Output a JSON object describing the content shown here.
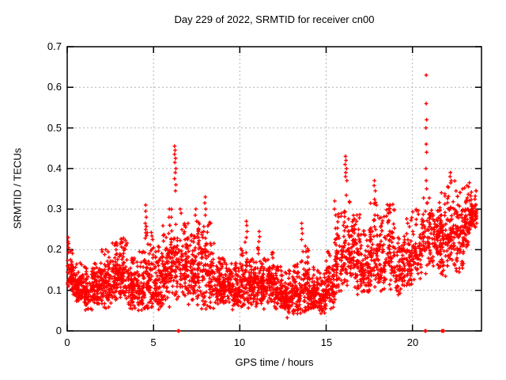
{
  "chart_data": {
    "type": "scatter",
    "title": "Day 229 of 2022, SRMTID for receiver cn00",
    "xlabel": "GPS time / hours",
    "ylabel": "SRMTID / TECUs",
    "xlim": [
      0,
      24
    ],
    "ylim": [
      0,
      0.7
    ],
    "xticks": [
      0,
      5,
      10,
      15,
      20
    ],
    "yticks": [
      0,
      0.1,
      0.2,
      0.3,
      0.4,
      0.5,
      0.6,
      0.7
    ],
    "xtick_labels": [
      "0",
      "5",
      "10",
      "15",
      "20"
    ],
    "ytick_labels": [
      "0",
      "0.1",
      "0.2",
      "0.3",
      "0.4",
      "0.5",
      "0.6",
      "0.7"
    ],
    "grid": true,
    "legend": null,
    "marker": "plus",
    "marker_color": "#ff0000",
    "grid_color": "#b4b4b4",
    "axis_color": "#000000",
    "seed": 229,
    "band_bins_format": [
      "t_start_hours",
      "t_end_hours",
      "point_count",
      "y_min_TECU",
      "y_max_TECU"
    ],
    "band_bins": [
      [
        0.0,
        0.5,
        80,
        0.08,
        0.2
      ],
      [
        0.5,
        1.0,
        80,
        0.06,
        0.17
      ],
      [
        1.0,
        1.5,
        80,
        0.05,
        0.16
      ],
      [
        1.5,
        2.0,
        80,
        0.06,
        0.17
      ],
      [
        2.0,
        2.5,
        80,
        0.05,
        0.21
      ],
      [
        2.5,
        3.0,
        80,
        0.06,
        0.22
      ],
      [
        3.0,
        3.5,
        80,
        0.07,
        0.23
      ],
      [
        3.5,
        4.0,
        80,
        0.05,
        0.18
      ],
      [
        4.0,
        4.5,
        75,
        0.04,
        0.2
      ],
      [
        4.5,
        5.0,
        75,
        0.05,
        0.26
      ],
      [
        5.0,
        5.5,
        75,
        0.04,
        0.22
      ],
      [
        5.5,
        6.0,
        75,
        0.05,
        0.27
      ],
      [
        6.0,
        6.5,
        75,
        0.07,
        0.3
      ],
      [
        6.5,
        7.0,
        75,
        0.08,
        0.27
      ],
      [
        7.0,
        7.5,
        75,
        0.06,
        0.24
      ],
      [
        7.5,
        8.0,
        75,
        0.05,
        0.27
      ],
      [
        8.0,
        8.5,
        75,
        0.04,
        0.27
      ],
      [
        8.5,
        9.0,
        75,
        0.05,
        0.18
      ],
      [
        9.0,
        9.5,
        75,
        0.06,
        0.18
      ],
      [
        9.5,
        10.0,
        75,
        0.05,
        0.17
      ],
      [
        10.0,
        10.5,
        75,
        0.05,
        0.22
      ],
      [
        10.5,
        11.0,
        75,
        0.06,
        0.18
      ],
      [
        11.0,
        11.5,
        75,
        0.05,
        0.21
      ],
      [
        11.5,
        12.0,
        75,
        0.06,
        0.2
      ],
      [
        12.0,
        12.5,
        75,
        0.05,
        0.16
      ],
      [
        12.5,
        13.0,
        75,
        0.03,
        0.15
      ],
      [
        13.0,
        13.5,
        75,
        0.03,
        0.17
      ],
      [
        13.5,
        14.0,
        75,
        0.04,
        0.21
      ],
      [
        14.0,
        14.5,
        75,
        0.05,
        0.16
      ],
      [
        14.5,
        15.0,
        75,
        0.04,
        0.15
      ],
      [
        15.0,
        15.5,
        70,
        0.05,
        0.2
      ],
      [
        15.5,
        16.0,
        70,
        0.07,
        0.29
      ],
      [
        16.0,
        16.5,
        70,
        0.1,
        0.34
      ],
      [
        16.5,
        17.0,
        70,
        0.08,
        0.29
      ],
      [
        17.0,
        17.5,
        70,
        0.08,
        0.25
      ],
      [
        17.5,
        18.0,
        70,
        0.1,
        0.33
      ],
      [
        18.0,
        18.5,
        70,
        0.08,
        0.29
      ],
      [
        18.5,
        19.0,
        70,
        0.1,
        0.32
      ],
      [
        19.0,
        19.5,
        65,
        0.08,
        0.24
      ],
      [
        19.5,
        20.0,
        65,
        0.1,
        0.28
      ],
      [
        20.0,
        20.5,
        60,
        0.12,
        0.3
      ],
      [
        20.5,
        21.0,
        55,
        0.14,
        0.33
      ],
      [
        21.0,
        21.5,
        65,
        0.15,
        0.33
      ],
      [
        21.5,
        22.0,
        75,
        0.13,
        0.35
      ],
      [
        22.0,
        22.5,
        75,
        0.15,
        0.37
      ],
      [
        22.5,
        23.0,
        75,
        0.14,
        0.35
      ],
      [
        23.0,
        23.4,
        60,
        0.2,
        0.36
      ],
      [
        23.4,
        23.75,
        45,
        0.24,
        0.35
      ]
    ],
    "spike_points": [
      [
        0.05,
        0.23
      ],
      [
        0.05,
        0.22
      ],
      [
        0.08,
        0.215
      ],
      [
        0.08,
        0.205
      ],
      [
        4.55,
        0.31
      ],
      [
        4.55,
        0.295
      ],
      [
        4.58,
        0.28
      ],
      [
        4.52,
        0.265
      ],
      [
        4.55,
        0.25
      ],
      [
        4.6,
        0.235
      ],
      [
        5.92,
        0.3
      ],
      [
        5.9,
        0.28
      ],
      [
        5.95,
        0.26
      ],
      [
        5.88,
        0.24
      ],
      [
        6.22,
        0.455
      ],
      [
        6.25,
        0.445
      ],
      [
        6.22,
        0.435
      ],
      [
        6.28,
        0.425
      ],
      [
        6.24,
        0.415
      ],
      [
        6.3,
        0.4
      ],
      [
        6.26,
        0.39
      ],
      [
        6.22,
        0.375
      ],
      [
        6.3,
        0.36
      ],
      [
        6.27,
        0.345
      ],
      [
        6.55,
        0.3
      ],
      [
        6.6,
        0.29
      ],
      [
        7.45,
        0.3
      ],
      [
        7.42,
        0.285
      ],
      [
        7.5,
        0.27
      ],
      [
        8.0,
        0.33
      ],
      [
        7.97,
        0.315
      ],
      [
        8.03,
        0.3
      ],
      [
        8.0,
        0.285
      ],
      [
        10.38,
        0.27
      ],
      [
        10.4,
        0.26
      ],
      [
        10.42,
        0.245
      ],
      [
        10.38,
        0.23
      ],
      [
        11.12,
        0.245
      ],
      [
        11.15,
        0.232
      ],
      [
        11.1,
        0.22
      ],
      [
        13.58,
        0.265
      ],
      [
        13.6,
        0.252
      ],
      [
        13.62,
        0.24
      ],
      [
        13.58,
        0.225
      ],
      [
        15.5,
        0.32
      ],
      [
        15.48,
        0.3
      ],
      [
        15.55,
        0.285
      ],
      [
        16.12,
        0.43
      ],
      [
        16.15,
        0.42
      ],
      [
        16.1,
        0.41
      ],
      [
        16.18,
        0.4
      ],
      [
        16.14,
        0.39
      ],
      [
        16.12,
        0.38
      ],
      [
        16.2,
        0.37
      ],
      [
        17.8,
        0.37
      ],
      [
        17.78,
        0.358
      ],
      [
        17.85,
        0.345
      ],
      [
        20.8,
        0.63
      ],
      [
        20.8,
        0.56
      ],
      [
        20.82,
        0.52
      ],
      [
        20.78,
        0.5
      ],
      [
        20.8,
        0.46
      ],
      [
        20.82,
        0.44
      ],
      [
        20.78,
        0.4
      ],
      [
        20.8,
        0.37
      ],
      [
        20.82,
        0.35
      ],
      [
        22.2,
        0.39
      ],
      [
        22.18,
        0.38
      ],
      [
        22.25,
        0.37
      ],
      [
        23.3,
        0.365
      ],
      [
        23.25,
        0.355
      ]
    ],
    "zero_points": [
      6.42,
      6.48,
      20.72,
      20.78,
      21.7,
      21.74,
      21.78,
      21.82
    ]
  }
}
